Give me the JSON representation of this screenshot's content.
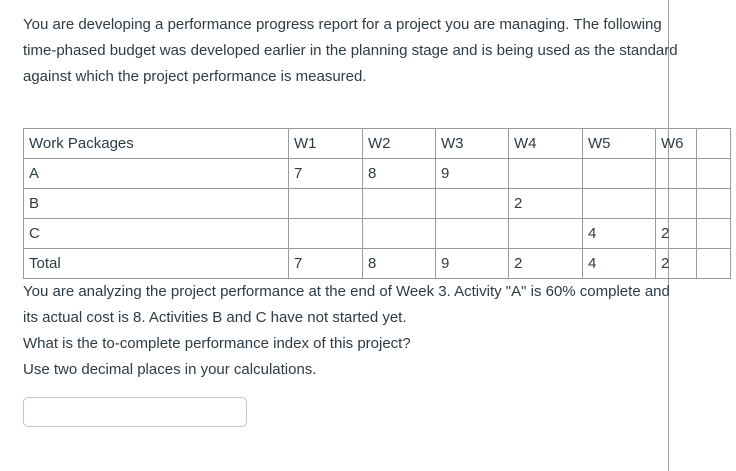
{
  "page": {
    "background": "#ffffff",
    "text_color": "#2d3b45",
    "divider_color": "#9c9c9c"
  },
  "question": {
    "intro": "You are developing a performance progress report for a project you are managing. The following time-phased budget was developed earlier in the planning stage and is being used as the standard against which the project performance is measured.",
    "analysis": "You are analyzing the project performance at the end of Week 3. Activity \"A\" is 60% complete and its actual cost is 8. Activities B and C have not started yet.",
    "prompt": "What is the to-complete performance index of this project?",
    "instruction": "Use two decimal places in your calculations."
  },
  "budget_table": {
    "columns": [
      "Work Packages",
      "W1",
      "W2",
      "W3",
      "W4",
      "W5",
      "W6",
      ""
    ],
    "rows": [
      {
        "label": "A",
        "values": [
          "7",
          "8",
          "9",
          "",
          "",
          "",
          ""
        ]
      },
      {
        "label": "B",
        "values": [
          "",
          "",
          "",
          "2",
          "",
          "",
          ""
        ]
      },
      {
        "label": "C",
        "values": [
          "",
          "",
          "",
          "",
          "4",
          "2",
          ""
        ]
      },
      {
        "label": "Total",
        "values": [
          "7",
          "8",
          "9",
          "2",
          "4",
          "2",
          ""
        ]
      }
    ]
  },
  "answer_input": {
    "value": "",
    "placeholder": ""
  }
}
